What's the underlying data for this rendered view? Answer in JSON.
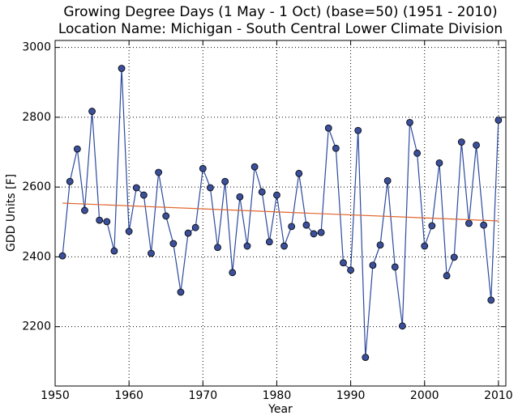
{
  "chart_data": {
    "type": "line",
    "title": "Growing Degree Days (1 May - 1 Oct) (base=50) (1951 - 2010)",
    "subtitle": "Location Name: Michigan - South Central Lower Climate Division",
    "x_label": "Year",
    "y_label": "GDD Units [F]",
    "x": [
      1951,
      1952,
      1953,
      1954,
      1955,
      1956,
      1957,
      1958,
      1959,
      1960,
      1961,
      1962,
      1963,
      1964,
      1965,
      1966,
      1967,
      1968,
      1969,
      1970,
      1971,
      1972,
      1973,
      1974,
      1975,
      1976,
      1977,
      1978,
      1979,
      1980,
      1981,
      1982,
      1983,
      1984,
      1985,
      1986,
      1987,
      1988,
      1989,
      1990,
      1991,
      1992,
      1993,
      1994,
      1995,
      1996,
      1997,
      1998,
      1999,
      2000,
      2001,
      2002,
      2003,
      2004,
      2005,
      2006,
      2007,
      2008,
      2009,
      2010
    ],
    "series": [
      {
        "color": "#2c4a9e",
        "marker_color": "#3b4f9a",
        "values": [
          2403,
          2616,
          2709,
          2533,
          2817,
          2505,
          2501,
          2417,
          2940,
          2473,
          2598,
          2577,
          2410,
          2642,
          2517,
          2438,
          2299,
          2468,
          2484,
          2653,
          2598,
          2427,
          2616,
          2355,
          2572,
          2431,
          2658,
          2586,
          2443,
          2577,
          2431,
          2487,
          2639,
          2491,
          2466,
          2470,
          2769,
          2711,
          2383,
          2362,
          2762,
          2112,
          2376,
          2434,
          2618,
          2371,
          2202,
          2785,
          2697,
          2431,
          2489,
          2669,
          2346,
          2399,
          2729,
          2496,
          2720,
          2491,
          2276,
          2792
        ]
      }
    ],
    "trend": {
      "x": [
        1951,
        2010
      ],
      "values": [
        2554,
        2503
      ],
      "color": "#e0662f"
    },
    "xlim": [
      1950,
      2011
    ],
    "ylim": [
      2030,
      3020
    ],
    "xticks": [
      1950,
      1960,
      1970,
      1980,
      1990,
      2000,
      2010
    ],
    "yticks": [
      2200,
      2400,
      2600,
      2800,
      3000
    ],
    "grid": true
  }
}
